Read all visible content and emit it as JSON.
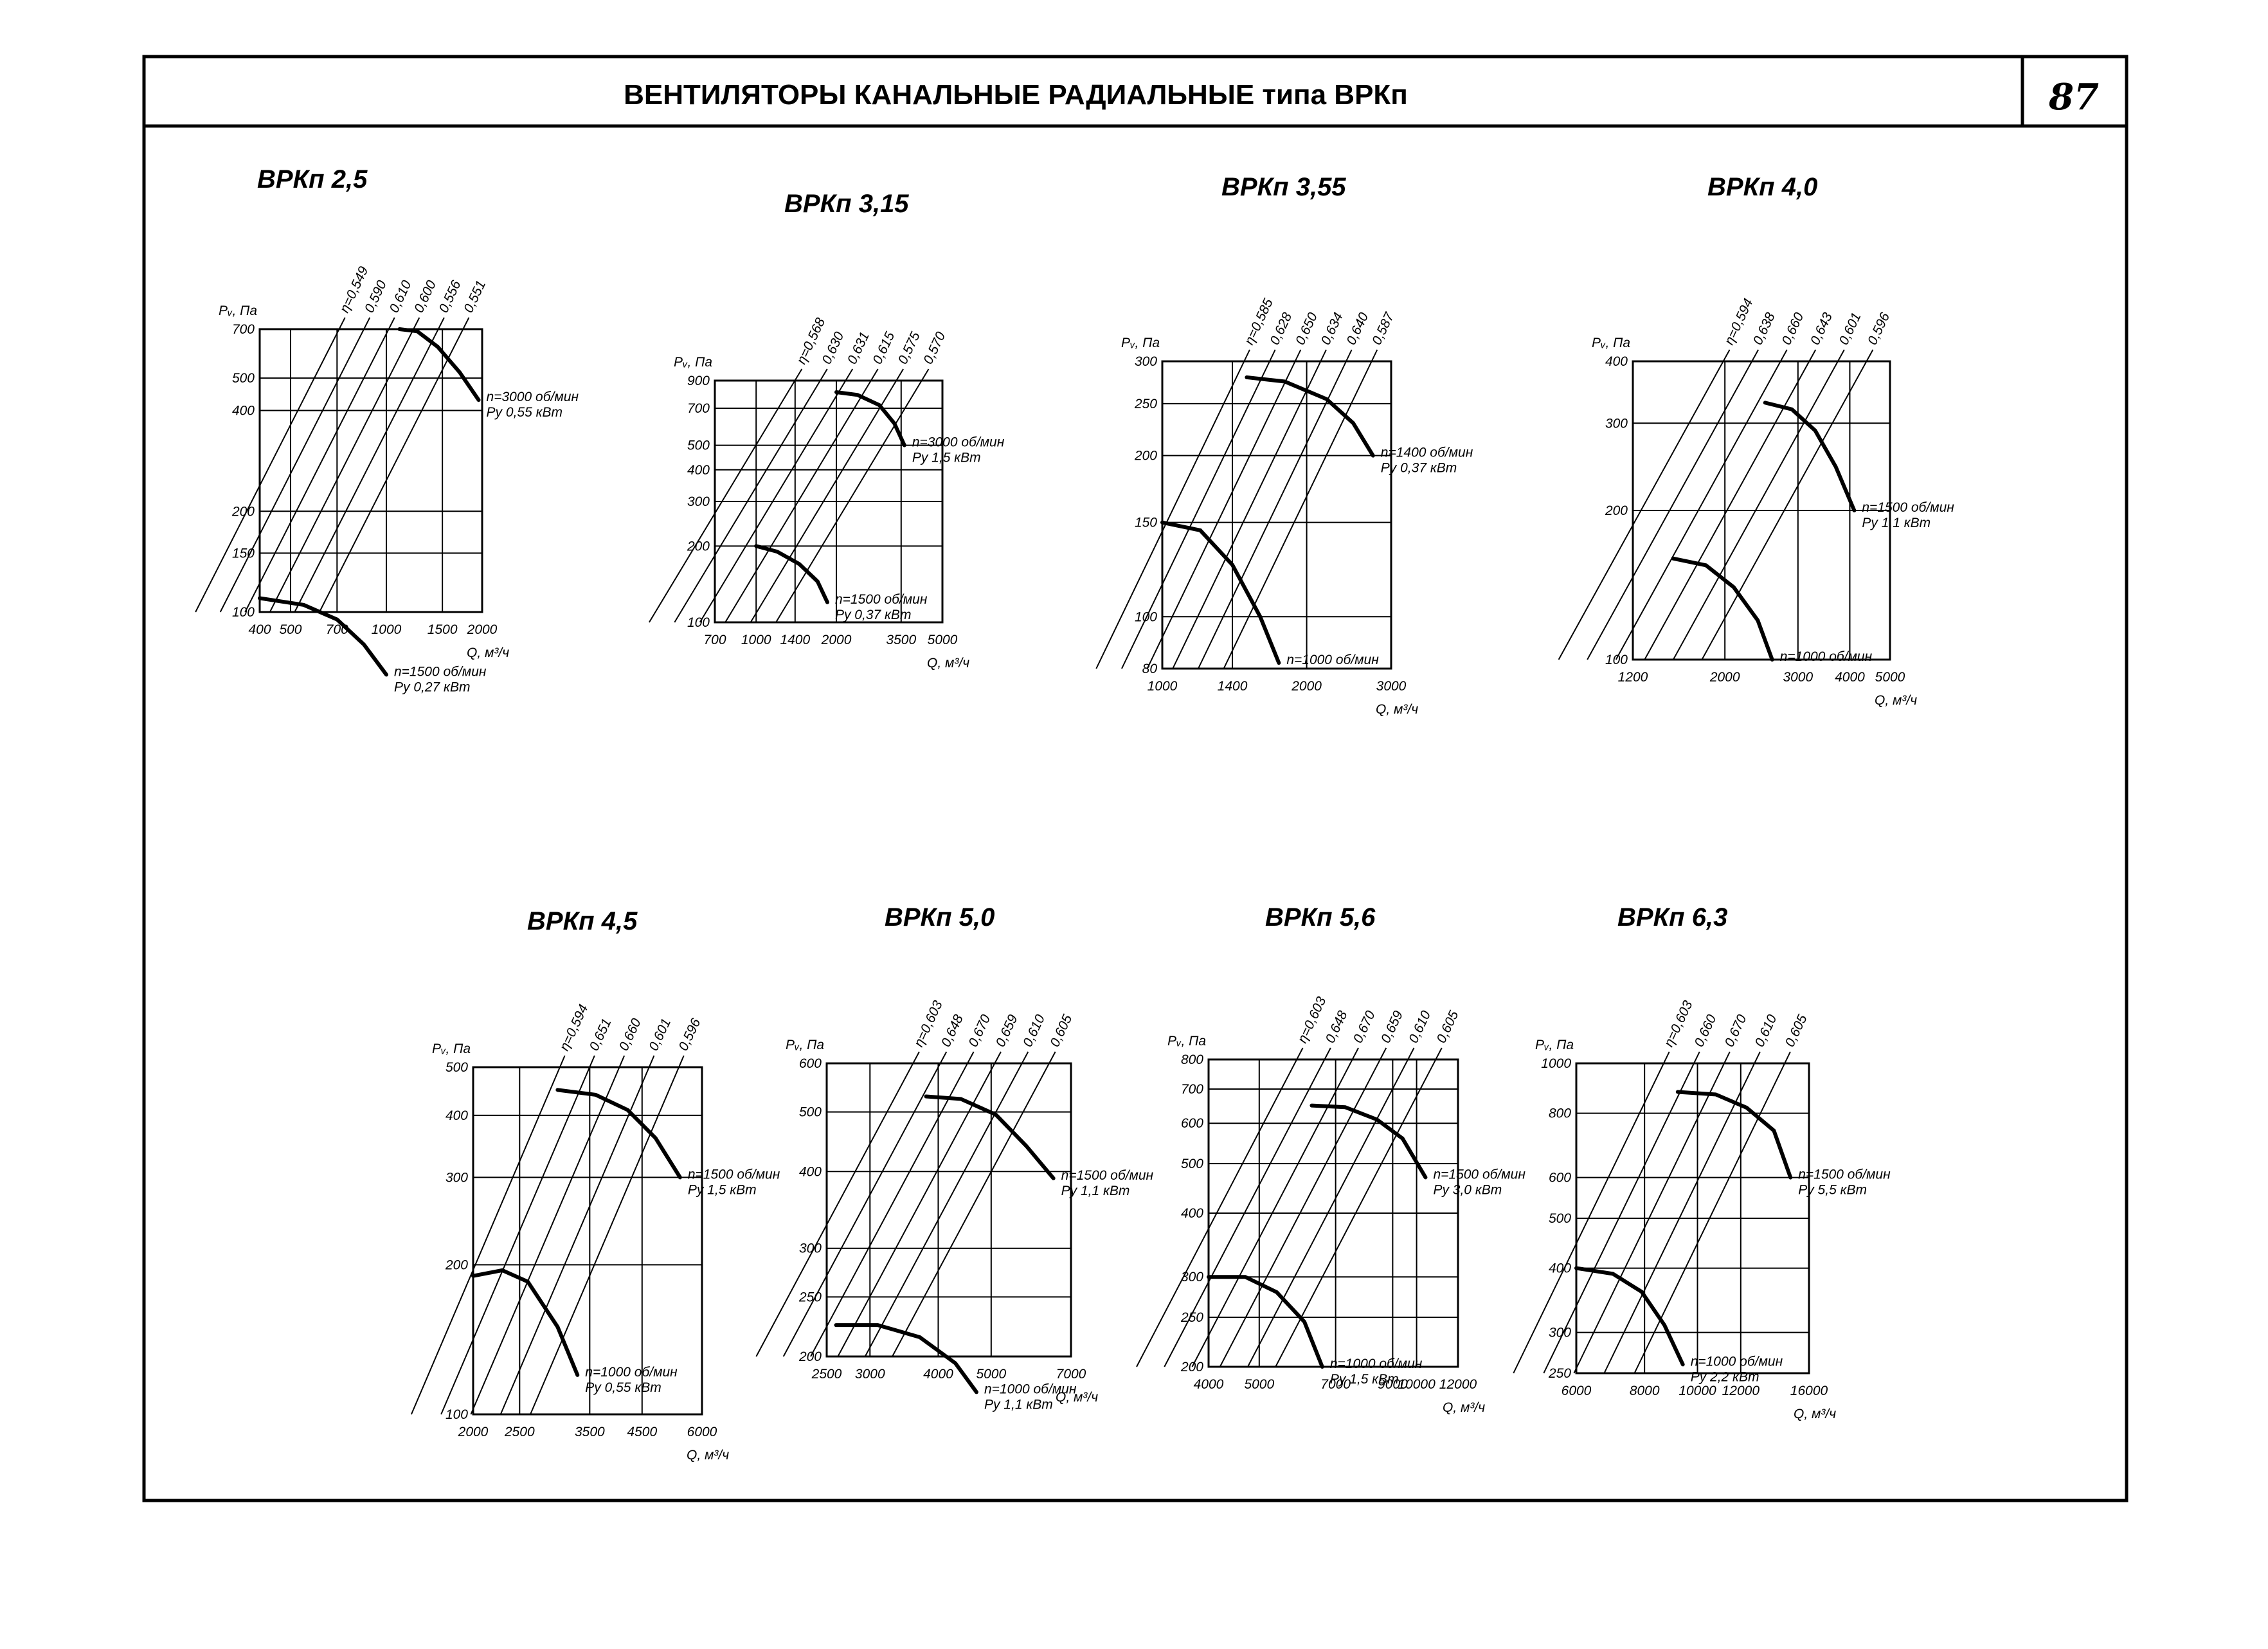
{
  "header": {
    "title": "ВЕНТИЛЯТОРЫ КАНАЛЬНЫЕ РАДИАЛЬНЫЕ типа ВРКп",
    "page_number": "87"
  },
  "chart_data": [
    {
      "type": "line",
      "title": "ВРКп 2,5",
      "xlabel": "Q, м³/ч",
      "ylabel": "Pᵥ, Па",
      "x_ticks": [
        "400",
        "500",
        "700",
        "1000",
        "1500",
        "2000"
      ],
      "y_ticks": [
        "100",
        "150",
        "200",
        "400",
        "500",
        "700"
      ],
      "efficiency_labels": [
        "η=0,549",
        "0,590",
        "0,610",
        "0,600",
        "0,556",
        "0,551"
      ],
      "series": [
        {
          "name": "n=3000 об/мин",
          "power": "Pу 0,55 кВт",
          "x": [
            1100,
            1250,
            1450,
            1700,
            1950
          ],
          "y": [
            700,
            690,
            620,
            520,
            430
          ]
        },
        {
          "name": "n=1500 об/мин",
          "power": "Pу 0,27 кВт",
          "x": [
            400,
            550,
            700,
            850,
            1000
          ],
          "y": [
            110,
            105,
            95,
            80,
            65
          ]
        }
      ]
    },
    {
      "type": "line",
      "title": "ВРКп 3,15",
      "xlabel": "Q, м³/ч",
      "ylabel": "Pᵥ, Па",
      "x_ticks": [
        "700",
        "1000",
        "1400",
        "2000",
        "3500",
        "5000"
      ],
      "y_ticks": [
        "100",
        "200",
        "300",
        "400",
        "500",
        "700",
        "900"
      ],
      "efficiency_labels": [
        "η=0,568",
        "0,630",
        "0,631",
        "0,615",
        "0,575",
        "0,570"
      ],
      "series": [
        {
          "name": "n=3000 об/мин",
          "power": "Pу 1,5 кВт",
          "x": [
            2000,
            2400,
            2900,
            3300,
            3600
          ],
          "y": [
            810,
            790,
            720,
            610,
            500
          ]
        },
        {
          "name": "n=1500 об/мин",
          "power": "Pу 0,37 кВт",
          "x": [
            1000,
            1200,
            1450,
            1700,
            1850
          ],
          "y": [
            200,
            190,
            170,
            145,
            120
          ]
        }
      ]
    },
    {
      "type": "line",
      "title": "ВРКп 3,55",
      "xlabel": "Q, м³/ч",
      "ylabel": "Pᵥ, Па",
      "x_ticks": [
        "1000",
        "1400",
        "2000",
        "3000"
      ],
      "y_ticks": [
        "80",
        "100",
        "150",
        "200",
        "250",
        "300"
      ],
      "efficiency_labels": [
        "η=0,585",
        "0,628",
        "0,650",
        "0,634",
        "0,640",
        "0,587"
      ],
      "series": [
        {
          "name": "n=1400 об/мин",
          "power": "Pу 0,37 кВт",
          "x": [
            1500,
            1800,
            2200,
            2500,
            2750
          ],
          "y": [
            280,
            275,
            255,
            230,
            200
          ]
        },
        {
          "name": "n=1000 об/мин",
          "power": "",
          "x": [
            1000,
            1200,
            1400,
            1600,
            1750
          ],
          "y": [
            150,
            145,
            125,
            100,
            82
          ]
        }
      ]
    },
    {
      "type": "line",
      "title": "ВРКп 4,0",
      "xlabel": "Q, м³/ч",
      "ylabel": "Pᵥ, Па",
      "x_ticks": [
        "1200",
        "2000",
        "3000",
        "4000",
        "5000"
      ],
      "y_ticks": [
        "100",
        "200",
        "300",
        "400"
      ],
      "efficiency_labels": [
        "η=0,594",
        "0,638",
        "0,660",
        "0,643",
        "0,601",
        "0,596"
      ],
      "series": [
        {
          "name": "n=1500 об/мин",
          "power": "Pу 1,1 кВт",
          "x": [
            2500,
            2900,
            3300,
            3700,
            4100
          ],
          "y": [
            330,
            320,
            290,
            245,
            200
          ]
        },
        {
          "name": "n=1000 об/мин",
          "power": "",
          "x": [
            1500,
            1800,
            2100,
            2400,
            2600
          ],
          "y": [
            160,
            155,
            140,
            120,
            100
          ]
        }
      ]
    },
    {
      "type": "line",
      "title": "ВРКп 4,5",
      "xlabel": "Q, м³/ч",
      "ylabel": "Pᵥ, Па",
      "x_ticks": [
        "2000",
        "2500",
        "3500",
        "4500",
        "6000"
      ],
      "y_ticks": [
        "100",
        "200",
        "300",
        "400",
        "500"
      ],
      "efficiency_labels": [
        "η=0,594",
        "0,651",
        "0,660",
        "0,601",
        "0,596"
      ],
      "series": [
        {
          "name": "n=1500 об/мин",
          "power": "Pу 1,5 кВт",
          "x": [
            3000,
            3600,
            4200,
            4800,
            5400
          ],
          "y": [
            450,
            440,
            410,
            360,
            300
          ]
        },
        {
          "name": "n=1000 об/мин",
          "power": "Pу 0,55 кВт",
          "x": [
            2000,
            2300,
            2600,
            3000,
            3300
          ],
          "y": [
            190,
            195,
            185,
            150,
            120
          ]
        }
      ]
    },
    {
      "type": "line",
      "title": "ВРКп 5,0",
      "xlabel": "Q, м³/ч",
      "ylabel": "Pᵥ, Па",
      "x_ticks": [
        "2500",
        "3000",
        "4000",
        "5000",
        "7000"
      ],
      "y_ticks": [
        "200",
        "250",
        "300",
        "400",
        "500",
        "600"
      ],
      "efficiency_labels": [
        "η=0,603",
        "0,648",
        "0,670",
        "0,659",
        "0,610",
        "0,605"
      ],
      "series": [
        {
          "name": "n=1500 об/мин",
          "power": "Pу 1,1 кВт",
          "x": [
            3800,
            4400,
            5100,
            5800,
            6500
          ],
          "y": [
            530,
            525,
            495,
            440,
            390
          ]
        },
        {
          "name": "n=1000 об/мин",
          "power": "Pу 1,1 кВт",
          "x": [
            2600,
            3100,
            3700,
            4300,
            4700
          ],
          "y": [
            225,
            225,
            215,
            195,
            175
          ]
        }
      ]
    },
    {
      "type": "line",
      "title": "ВРКп 5,6",
      "xlabel": "Q, м³/ч",
      "ylabel": "Pᵥ, Па",
      "x_ticks": [
        "4000",
        "5000",
        "7000",
        "9000",
        "10000",
        "12000"
      ],
      "y_ticks": [
        "200",
        "250",
        "300",
        "400",
        "500",
        "600",
        "700",
        "800"
      ],
      "efficiency_labels": [
        "η=0,603",
        "0,648",
        "0,670",
        "0,659",
        "0,610",
        "0,605"
      ],
      "series": [
        {
          "name": "n=1500 об/мин",
          "power": "Pу 3,0 кВт",
          "x": [
            6300,
            7300,
            8400,
            9400,
            10400
          ],
          "y": [
            650,
            645,
            610,
            560,
            470
          ]
        },
        {
          "name": "n=1000 об/мин",
          "power": "Pу 1,5 кВт",
          "x": [
            4000,
            4700,
            5400,
            6100,
            6600
          ],
          "y": [
            300,
            300,
            280,
            245,
            200
          ]
        }
      ]
    },
    {
      "type": "line",
      "title": "ВРКп 6,3",
      "xlabel": "Q, м³/ч",
      "ylabel": "Pᵥ, Па",
      "x_ticks": [
        "6000",
        "8000",
        "10000",
        "12000",
        "16000"
      ],
      "y_ticks": [
        "250",
        "300",
        "400",
        "500",
        "600",
        "800",
        "1000"
      ],
      "efficiency_labels": [
        "η=0,603",
        "0,660",
        "0,670",
        "0,610",
        "0,605"
      ],
      "series": [
        {
          "name": "n=1500 об/мин",
          "power": "Pу 5,5 кВт",
          "x": [
            9200,
            10800,
            12300,
            13800,
            14800
          ],
          "y": [
            880,
            870,
            820,
            740,
            600
          ]
        },
        {
          "name": "n=1000 об/мин",
          "power": "Pу 2,2 кВт",
          "x": [
            6000,
            7000,
            7900,
            8700,
            9400
          ],
          "y": [
            400,
            390,
            360,
            310,
            260
          ]
        }
      ]
    }
  ]
}
